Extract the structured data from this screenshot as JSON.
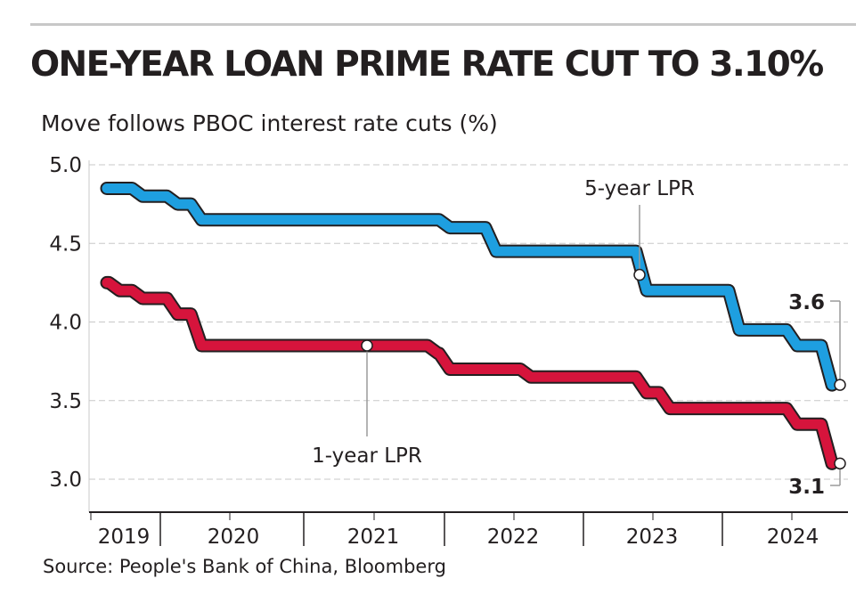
{
  "title": "ONE-YEAR LOAN PRIME RATE CUT TO 3.10%",
  "subtitle": "Move follows PBOC interest rate cuts (%)",
  "source": "Source: People's Bank of China, Bloomberg",
  "colors": {
    "five_year": "#1e9fe0",
    "one_year": "#d6143c",
    "axis": "#231f20",
    "grid": "#c8c8c8"
  },
  "chart_data": {
    "type": "line",
    "title": "ONE-YEAR LOAN PRIME RATE CUT TO 3.10%",
    "subtitle": "Move follows PBOC interest rate cuts (%)",
    "ylim": [
      3.0,
      5.0
    ],
    "yticks": [
      "5.0",
      "4.5",
      "4.0",
      "3.5",
      "3.0"
    ],
    "xticks": [
      "2019",
      "2020",
      "2021",
      "2022",
      "2023",
      "2024"
    ],
    "grid": true,
    "series": [
      {
        "name": "5-year LPR",
        "x": [
          "2019-08",
          "2019-11",
          "2020-02",
          "2020-04",
          "2022-01",
          "2022-05",
          "2023-06",
          "2024-02",
          "2024-07",
          "2024-10"
        ],
        "values": [
          4.85,
          4.8,
          4.75,
          4.65,
          4.6,
          4.45,
          4.2,
          3.95,
          3.85,
          3.6
        ]
      },
      {
        "name": "1-year LPR",
        "x": [
          "2019-08",
          "2019-09",
          "2019-11",
          "2020-02",
          "2020-04",
          "2021-12",
          "2022-01",
          "2022-08",
          "2023-06",
          "2023-08",
          "2024-07",
          "2024-10"
        ],
        "values": [
          4.25,
          4.2,
          4.15,
          4.05,
          3.85,
          3.8,
          3.7,
          3.65,
          3.55,
          3.45,
          3.35,
          3.1
        ]
      }
    ],
    "annotations": [
      {
        "text": "5-year LPR",
        "series": "5-year LPR"
      },
      {
        "text": "1-year LPR",
        "series": "1-year LPR"
      },
      {
        "text": "3.6",
        "series": "5-year LPR"
      },
      {
        "text": "3.1",
        "series": "1-year LPR"
      }
    ]
  }
}
